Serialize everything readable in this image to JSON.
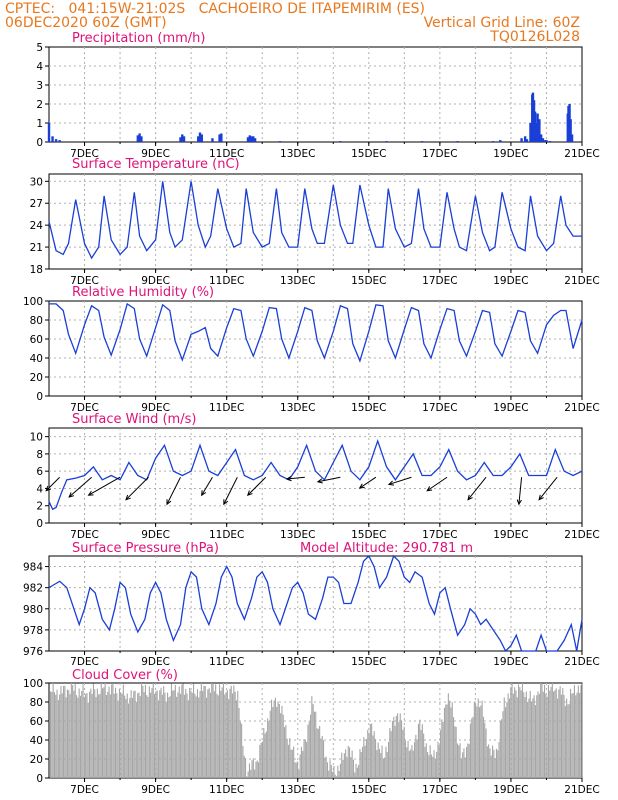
{
  "header": {
    "line1_left": "CPTEC:   041:15W-21:02S   CACHOEIRO DE ITAPEMIRIM (ES)",
    "line2_left": "06DEC2020 60Z (GMT)",
    "line2_right": "Vertical Grid Line: 60Z",
    "line3_right": "TQ0126L028"
  },
  "colors": {
    "header": "#e8781e",
    "title": "#e0127a",
    "line": "#1a3fd6",
    "bar": "#1a3fd6",
    "cloud": "#a6a6a6",
    "grid": "#b0b0b0"
  },
  "x_axis": {
    "start_day": 6,
    "end_day": 21,
    "tick_labels": [
      "7DEC",
      "9DEC",
      "11DEC",
      "13DEC",
      "15DEC",
      "17DEC",
      "19DEC",
      "21DEC"
    ],
    "tick_days": [
      7,
      9,
      11,
      13,
      15,
      17,
      19,
      21
    ]
  },
  "chart_data": [
    {
      "id": "precip",
      "type": "bar",
      "title": "Precipitation (mm/h)",
      "ylim": [
        0,
        5
      ],
      "yticks": [
        0,
        1,
        2,
        3,
        4,
        5
      ],
      "x": [
        6.0,
        6.1,
        6.2,
        6.3,
        8.5,
        8.55,
        8.6,
        9.7,
        9.75,
        9.8,
        10.2,
        10.25,
        10.3,
        10.6,
        10.8,
        10.85,
        11.6,
        11.65,
        11.7,
        11.75,
        11.8,
        12.5,
        14.2,
        15.5,
        16.5,
        17.5,
        18.5,
        18.7,
        19.3,
        19.4,
        19.45,
        19.55,
        19.6,
        19.62,
        19.65,
        19.68,
        19.72,
        19.75,
        19.8,
        19.85,
        19.9,
        19.95,
        20.0,
        20.1,
        20.6,
        20.62,
        20.65,
        20.68,
        20.72
      ],
      "values": [
        1.0,
        0.3,
        0.15,
        0.1,
        0.35,
        0.45,
        0.3,
        0.25,
        0.4,
        0.3,
        0.3,
        0.5,
        0.4,
        0.2,
        0.4,
        0.45,
        0.25,
        0.35,
        0.3,
        0.3,
        0.2,
        0.05,
        0.05,
        0.05,
        0.05,
        0.05,
        0.05,
        0.1,
        0.2,
        0.3,
        0.15,
        1.0,
        2.5,
        2.6,
        2.2,
        1.6,
        1.0,
        1.5,
        1.2,
        0.4,
        0.2,
        0.1,
        0.1,
        0.05,
        1.5,
        1.9,
        2.0,
        1.2,
        0.4
      ]
    },
    {
      "id": "temp",
      "type": "line",
      "title": "Surface Temperature (nC)",
      "ylim": [
        18,
        31
      ],
      "yticks": [
        18,
        21,
        24,
        27,
        30
      ],
      "x": [
        6.0,
        6.2,
        6.4,
        6.55,
        6.75,
        7.0,
        7.2,
        7.4,
        7.55,
        7.75,
        8.0,
        8.2,
        8.4,
        8.55,
        8.75,
        9.0,
        9.2,
        9.4,
        9.55,
        9.75,
        10.0,
        10.2,
        10.4,
        10.55,
        10.75,
        11.0,
        11.2,
        11.4,
        11.55,
        11.75,
        12.0,
        12.2,
        12.4,
        12.55,
        12.75,
        13.0,
        13.2,
        13.4,
        13.55,
        13.75,
        14.0,
        14.2,
        14.4,
        14.55,
        14.75,
        15.0,
        15.2,
        15.4,
        15.55,
        15.75,
        16.0,
        16.2,
        16.4,
        16.55,
        16.75,
        17.0,
        17.2,
        17.4,
        17.55,
        17.75,
        18.0,
        18.2,
        18.4,
        18.55,
        18.75,
        19.0,
        19.2,
        19.4,
        19.55,
        19.75,
        20.0,
        20.2,
        20.4,
        20.55,
        20.75,
        21.0
      ],
      "y": [
        24.5,
        20.5,
        20.0,
        21.5,
        27.5,
        21.5,
        19.5,
        21.0,
        28.0,
        22.0,
        20.0,
        21.0,
        28.5,
        22.5,
        20.5,
        22.0,
        30.0,
        23.0,
        21.0,
        22.0,
        30.0,
        24.0,
        21.0,
        22.5,
        29.0,
        23.5,
        21.0,
        21.5,
        29.0,
        23.0,
        21.0,
        21.5,
        29.0,
        23.0,
        21.0,
        21.0,
        29.0,
        23.5,
        21.5,
        21.5,
        29.5,
        24.0,
        21.5,
        21.5,
        29.5,
        24.0,
        21.0,
        21.0,
        29.0,
        23.5,
        21.0,
        21.5,
        29.0,
        23.5,
        21.0,
        21.0,
        28.5,
        23.5,
        21.0,
        20.5,
        28.0,
        23.0,
        20.5,
        21.0,
        28.5,
        23.5,
        21.0,
        20.5,
        28.0,
        22.5,
        20.5,
        21.5,
        28.0,
        24.0,
        22.5,
        22.5
      ]
    },
    {
      "id": "rh",
      "type": "line",
      "title": "Relative Humidity (%)",
      "ylim": [
        0,
        100
      ],
      "yticks": [
        0,
        20,
        40,
        60,
        80,
        100
      ],
      "x": [
        6.0,
        6.2,
        6.4,
        6.55,
        6.75,
        7.0,
        7.2,
        7.4,
        7.55,
        7.75,
        8.0,
        8.2,
        8.4,
        8.55,
        8.75,
        9.0,
        9.2,
        9.4,
        9.55,
        9.75,
        10.0,
        10.2,
        10.4,
        10.55,
        10.75,
        11.0,
        11.2,
        11.4,
        11.55,
        11.75,
        12.0,
        12.2,
        12.4,
        12.55,
        12.75,
        13.0,
        13.2,
        13.4,
        13.55,
        13.75,
        14.0,
        14.2,
        14.4,
        14.55,
        14.75,
        15.0,
        15.2,
        15.4,
        15.55,
        15.75,
        16.0,
        16.2,
        16.4,
        16.55,
        16.75,
        17.0,
        17.2,
        17.4,
        17.55,
        17.75,
        18.0,
        18.2,
        18.4,
        18.55,
        18.75,
        19.0,
        19.2,
        19.4,
        19.55,
        19.75,
        20.0,
        20.2,
        20.4,
        20.55,
        20.75,
        21.0
      ],
      "y": [
        97,
        97,
        90,
        65,
        45,
        75,
        95,
        90,
        62,
        43,
        70,
        97,
        92,
        60,
        42,
        72,
        96,
        90,
        58,
        38,
        65,
        68,
        72,
        50,
        42,
        72,
        92,
        90,
        60,
        42,
        68,
        93,
        92,
        60,
        40,
        68,
        93,
        90,
        58,
        40,
        68,
        95,
        92,
        55,
        37,
        68,
        96,
        95,
        58,
        40,
        70,
        93,
        90,
        55,
        40,
        70,
        92,
        90,
        58,
        42,
        68,
        90,
        88,
        55,
        42,
        68,
        90,
        88,
        58,
        45,
        75,
        85,
        90,
        90,
        50,
        80
      ]
    },
    {
      "id": "wind",
      "type": "line",
      "title": "Surface Wind (m/s)",
      "ylim": [
        0,
        11
      ],
      "yticks": [
        0,
        2,
        4,
        6,
        8,
        10
      ],
      "x": [
        6.0,
        6.1,
        6.2,
        6.35,
        6.5,
        6.75,
        7.0,
        7.25,
        7.5,
        7.75,
        8.0,
        8.25,
        8.5,
        8.75,
        9.0,
        9.25,
        9.5,
        9.75,
        10.0,
        10.25,
        10.5,
        10.75,
        11.0,
        11.25,
        11.5,
        11.75,
        12.0,
        12.25,
        12.5,
        12.75,
        13.0,
        13.25,
        13.5,
        13.75,
        14.0,
        14.25,
        14.5,
        14.75,
        15.0,
        15.25,
        15.5,
        15.75,
        16.0,
        16.25,
        16.5,
        16.75,
        17.0,
        17.25,
        17.5,
        17.75,
        18.0,
        18.25,
        18.5,
        18.75,
        19.0,
        19.25,
        19.5,
        19.75,
        20.0,
        20.25,
        20.5,
        20.75,
        21.0
      ],
      "y": [
        2.5,
        1.6,
        1.8,
        3.5,
        5.0,
        5.2,
        5.5,
        6.5,
        5.0,
        5.5,
        5.0,
        7.0,
        5.5,
        5.0,
        7.5,
        9.0,
        6.0,
        5.5,
        6.0,
        9.0,
        6.0,
        5.5,
        7.0,
        8.5,
        5.5,
        5.0,
        5.5,
        7.0,
        5.5,
        5.0,
        6.5,
        9.0,
        6.0,
        5.0,
        7.0,
        9.0,
        6.0,
        5.0,
        6.5,
        9.5,
        6.5,
        5.0,
        6.5,
        8.0,
        5.5,
        5.5,
        6.5,
        8.5,
        6.0,
        5.0,
        5.5,
        7.0,
        5.5,
        5.5,
        6.5,
        8.0,
        5.5,
        5.5,
        5.5,
        8.5,
        6.0,
        5.5,
        6.0
      ],
      "arrow_x": [
        6.3,
        7.2,
        8.0,
        8.8,
        9.7,
        10.6,
        11.3,
        12.1,
        13.2,
        14.2,
        15.2,
        16.2,
        17.2,
        18.3,
        19.3,
        20.3
      ],
      "arrow_u": [
        1.5,
        2.5,
        3.5,
        2.5,
        1.5,
        1.2,
        1.5,
        2.0,
        2.0,
        2.5,
        1.8,
        2.5,
        2.2,
        2.0,
        0.3,
        2.0
      ],
      "arrow_v": [
        1.5,
        2.2,
        2.0,
        2.5,
        3.0,
        2.0,
        3.0,
        2.0,
        0.2,
        0.5,
        1.2,
        0.8,
        1.5,
        2.5,
        3.0,
        2.5
      ]
    },
    {
      "id": "pres",
      "type": "line",
      "title": "Surface Pressure (hPa)",
      "subtitle": "Model Altitude: 290.781 m",
      "ylim": [
        976,
        985
      ],
      "yticks": [
        976,
        978,
        980,
        982,
        984
      ],
      "x": [
        6.0,
        6.15,
        6.3,
        6.5,
        6.7,
        6.85,
        7.0,
        7.15,
        7.3,
        7.5,
        7.7,
        7.85,
        8.0,
        8.15,
        8.3,
        8.5,
        8.7,
        8.85,
        9.0,
        9.15,
        9.3,
        9.5,
        9.7,
        9.85,
        10.0,
        10.15,
        10.3,
        10.5,
        10.7,
        10.85,
        11.0,
        11.15,
        11.3,
        11.5,
        11.7,
        11.85,
        12.0,
        12.15,
        12.3,
        12.5,
        12.7,
        12.85,
        13.0,
        13.15,
        13.3,
        13.5,
        13.7,
        13.85,
        14.0,
        14.15,
        14.3,
        14.5,
        14.7,
        14.85,
        15.0,
        15.15,
        15.3,
        15.5,
        15.7,
        15.85,
        16.0,
        16.15,
        16.3,
        16.5,
        16.7,
        16.85,
        17.0,
        17.15,
        17.3,
        17.5,
        17.7,
        17.85,
        18.0,
        18.15,
        18.3,
        18.5,
        18.7,
        18.85,
        19.0,
        19.15,
        19.3,
        19.5,
        19.7,
        19.85,
        20.0,
        20.15,
        20.3,
        20.5,
        20.7,
        20.85,
        21.0
      ],
      "y": [
        982.0,
        982.3,
        982.6,
        982.0,
        980.0,
        978.5,
        980.0,
        982.0,
        981.5,
        979.0,
        978.0,
        980.0,
        982.5,
        982.0,
        979.5,
        977.8,
        979.0,
        981.5,
        982.5,
        981.5,
        979.0,
        977.0,
        978.5,
        982.0,
        983.5,
        983.0,
        980.0,
        978.5,
        980.5,
        983.0,
        984.0,
        983.0,
        980.5,
        979.0,
        981.0,
        983.0,
        983.5,
        982.5,
        980.0,
        978.5,
        980.5,
        982.0,
        982.5,
        981.5,
        979.5,
        979.0,
        981.0,
        983.0,
        983.0,
        982.5,
        980.5,
        980.5,
        982.5,
        984.5,
        985.0,
        984.0,
        982.0,
        983.0,
        985.0,
        984.5,
        983.0,
        982.5,
        983.5,
        983.0,
        980.5,
        979.5,
        981.5,
        982.0,
        980.0,
        977.5,
        978.5,
        980.0,
        979.5,
        978.5,
        979.0,
        978.0,
        977.0,
        975.5,
        976.5,
        977.5,
        976.0,
        975.0,
        976.0,
        977.5,
        975.5,
        975.5,
        976.0,
        977.0,
        978.5,
        976.0,
        979.0
      ]
    },
    {
      "id": "cloud",
      "type": "area",
      "title": "Cloud Cover (%)",
      "ylim": [
        0,
        100
      ],
      "yticks": [
        0,
        20,
        40,
        60,
        80,
        100
      ],
      "x": [
        6.0,
        6.3,
        6.6,
        7.0,
        7.3,
        7.6,
        8.0,
        8.3,
        8.6,
        9.0,
        9.3,
        9.6,
        10.0,
        10.3,
        10.6,
        11.0,
        11.3,
        11.45,
        11.55,
        11.8,
        12.0,
        12.2,
        12.4,
        12.6,
        12.8,
        13.0,
        13.2,
        13.4,
        13.6,
        13.8,
        14.0,
        14.2,
        14.4,
        14.6,
        14.8,
        15.0,
        15.2,
        15.4,
        15.6,
        15.8,
        16.0,
        16.2,
        16.4,
        16.6,
        16.8,
        17.0,
        17.2,
        17.4,
        17.6,
        17.8,
        18.0,
        18.2,
        18.4,
        18.6,
        18.8,
        19.0,
        19.2,
        19.4,
        19.6,
        19.8,
        20.0,
        20.2,
        20.4,
        20.6,
        20.8,
        21.0
      ],
      "y": [
        92,
        90,
        95,
        88,
        92,
        95,
        90,
        85,
        93,
        92,
        88,
        94,
        90,
        93,
        95,
        92,
        90,
        30,
        10,
        15,
        40,
        70,
        85,
        60,
        30,
        15,
        40,
        80,
        50,
        20,
        5,
        15,
        35,
        10,
        30,
        55,
        40,
        20,
        50,
        70,
        45,
        25,
        60,
        35,
        20,
        45,
        90,
        60,
        20,
        40,
        85,
        70,
        25,
        30,
        80,
        92,
        95,
        90,
        80,
        95,
        93,
        95,
        90,
        80,
        95,
        92
      ]
    }
  ]
}
